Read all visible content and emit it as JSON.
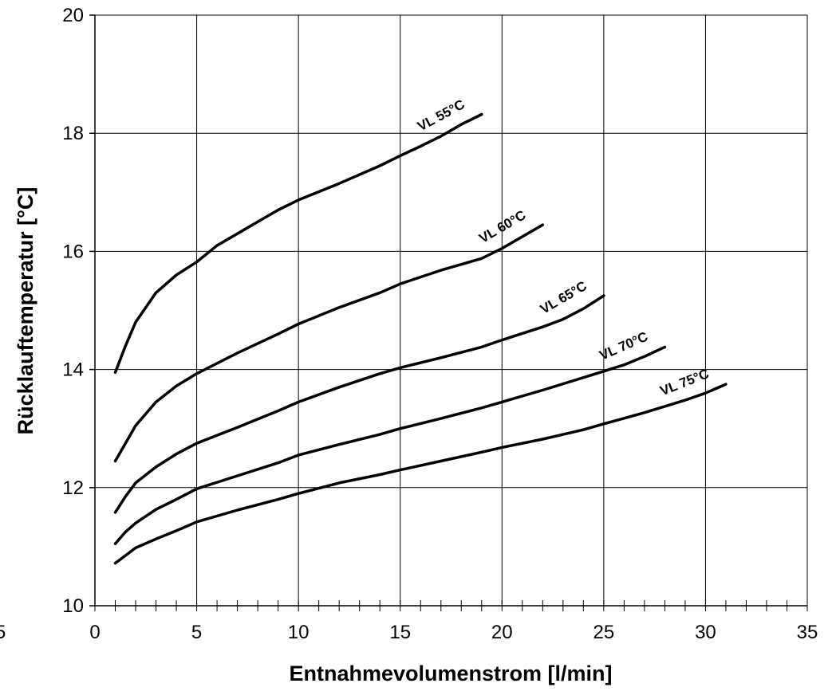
{
  "stray_text": "5",
  "chart_data": {
    "type": "line",
    "title": "",
    "xlabel": "Entnahmevolumenstrom [l/min]",
    "ylabel": "Rücklauftemperatur [°C]",
    "xlim": [
      0,
      35
    ],
    "ylim": [
      10,
      20
    ],
    "x_ticks": [
      0,
      5,
      10,
      15,
      20,
      25,
      30,
      35
    ],
    "y_ticks": [
      10,
      12,
      14,
      16,
      18,
      20
    ],
    "x_minor_step": 1,
    "grid": true,
    "series": [
      {
        "name": "VL 55°C",
        "points": [
          [
            1,
            13.95
          ],
          [
            1.5,
            14.4
          ],
          [
            2,
            14.8
          ],
          [
            3,
            15.3
          ],
          [
            4,
            15.6
          ],
          [
            5,
            15.82
          ],
          [
            6,
            16.1
          ],
          [
            7,
            16.3
          ],
          [
            8,
            16.5
          ],
          [
            9,
            16.7
          ],
          [
            10,
            16.87
          ],
          [
            12,
            17.15
          ],
          [
            14,
            17.45
          ],
          [
            15,
            17.62
          ],
          [
            16,
            17.78
          ],
          [
            17,
            17.95
          ],
          [
            18,
            18.15
          ],
          [
            19,
            18.32
          ]
        ]
      },
      {
        "name": "VL 60°C",
        "points": [
          [
            1,
            12.45
          ],
          [
            1.5,
            12.75
          ],
          [
            2,
            13.05
          ],
          [
            3,
            13.45
          ],
          [
            4,
            13.72
          ],
          [
            5,
            13.93
          ],
          [
            7,
            14.28
          ],
          [
            9,
            14.6
          ],
          [
            10,
            14.77
          ],
          [
            12,
            15.05
          ],
          [
            14,
            15.3
          ],
          [
            15,
            15.45
          ],
          [
            17,
            15.68
          ],
          [
            19,
            15.88
          ],
          [
            20,
            16.05
          ],
          [
            21,
            16.25
          ],
          [
            22,
            16.45
          ]
        ]
      },
      {
        "name": "VL 65°C",
        "points": [
          [
            1,
            11.58
          ],
          [
            1.5,
            11.85
          ],
          [
            2,
            12.08
          ],
          [
            3,
            12.35
          ],
          [
            4,
            12.57
          ],
          [
            5,
            12.75
          ],
          [
            7,
            13.02
          ],
          [
            9,
            13.3
          ],
          [
            10,
            13.45
          ],
          [
            12,
            13.7
          ],
          [
            14,
            13.93
          ],
          [
            15,
            14.03
          ],
          [
            17,
            14.2
          ],
          [
            19,
            14.38
          ],
          [
            20,
            14.5
          ],
          [
            22,
            14.72
          ],
          [
            23,
            14.85
          ],
          [
            24,
            15.03
          ],
          [
            25,
            15.25
          ]
        ]
      },
      {
        "name": "VL 70°C",
        "points": [
          [
            1,
            11.05
          ],
          [
            1.5,
            11.25
          ],
          [
            2,
            11.4
          ],
          [
            3,
            11.63
          ],
          [
            4,
            11.8
          ],
          [
            5,
            11.98
          ],
          [
            7,
            12.2
          ],
          [
            9,
            12.42
          ],
          [
            10,
            12.55
          ],
          [
            12,
            12.73
          ],
          [
            14,
            12.9
          ],
          [
            15,
            13.0
          ],
          [
            17,
            13.17
          ],
          [
            19,
            13.35
          ],
          [
            20,
            13.45
          ],
          [
            22,
            13.65
          ],
          [
            25,
            13.97
          ],
          [
            26,
            14.08
          ],
          [
            27,
            14.22
          ],
          [
            28,
            14.38
          ]
        ]
      },
      {
        "name": "VL 75°C",
        "points": [
          [
            1,
            10.72
          ],
          [
            1.5,
            10.85
          ],
          [
            2,
            10.98
          ],
          [
            3,
            11.13
          ],
          [
            4,
            11.27
          ],
          [
            5,
            11.42
          ],
          [
            7,
            11.62
          ],
          [
            9,
            11.8
          ],
          [
            10,
            11.9
          ],
          [
            12,
            12.08
          ],
          [
            14,
            12.22
          ],
          [
            15,
            12.3
          ],
          [
            17,
            12.45
          ],
          [
            19,
            12.6
          ],
          [
            20,
            12.68
          ],
          [
            22,
            12.82
          ],
          [
            24,
            12.98
          ],
          [
            25,
            13.08
          ],
          [
            27,
            13.27
          ],
          [
            29,
            13.48
          ],
          [
            30,
            13.6
          ],
          [
            31,
            13.75
          ]
        ]
      }
    ]
  }
}
